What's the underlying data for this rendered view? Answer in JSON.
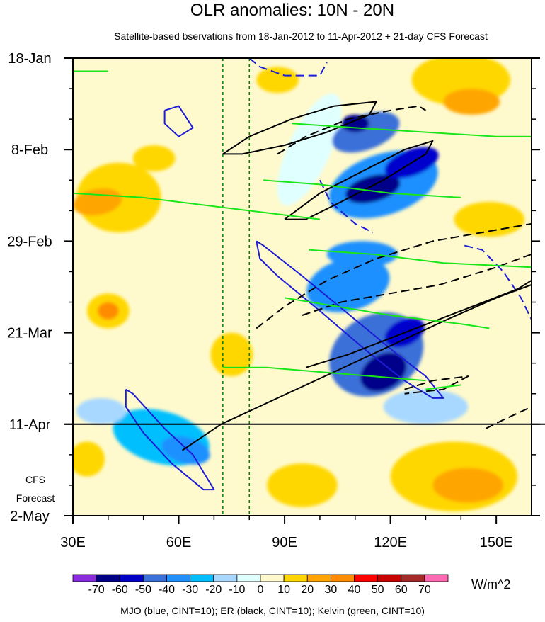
{
  "chart_data": {
    "type": "heatmap",
    "title": "OLR anomalies: 10N - 20N",
    "subtitle": "Satellite-based bservations from 18-Jan-2012 to 11-Apr-2012 + 21-day CFS Forecast",
    "x_ticks": [
      {
        "value": 30,
        "label": "30E"
      },
      {
        "value": 60,
        "label": "60E"
      },
      {
        "value": 90,
        "label": "90E"
      },
      {
        "value": 120,
        "label": "120E"
      },
      {
        "value": 150,
        "label": "150E"
      }
    ],
    "xlim": [
      30,
      160
    ],
    "ylim_days": [
      0,
      105
    ],
    "y_ticks": [
      {
        "day": 0,
        "label": "18-Jan"
      },
      {
        "day": 21,
        "label": "8-Feb"
      },
      {
        "day": 42,
        "label": "29-Feb"
      },
      {
        "day": 63,
        "label": "21-Mar"
      },
      {
        "day": 84,
        "label": "11-Apr"
      },
      {
        "day": 105,
        "label": "2-May"
      }
    ],
    "forecast_start_day": 84,
    "forecast_label_lines": [
      "CFS",
      "Forecast"
    ],
    "reference_lines_lon": [
      72.5,
      80
    ],
    "colorbar": {
      "unit": "W/m^2",
      "levels": [
        -70,
        -60,
        -50,
        -40,
        -30,
        -20,
        -10,
        0,
        10,
        20,
        30,
        40,
        50,
        60,
        70
      ],
      "colors": [
        "#8a2be2",
        "#00008b",
        "#0000cd",
        "#3a6fd8",
        "#1e90ff",
        "#00bfff",
        "#a8d8ff",
        "#e0ffff",
        "#fffacd",
        "#ffd700",
        "#ffa500",
        "#ff8c00",
        "#ff0000",
        "#cd0000",
        "#a52a2a",
        "#ff69b4"
      ]
    },
    "anomaly_patches": [
      {
        "lon": 97,
        "day": 21,
        "rl": 6,
        "rd": 14,
        "rot": 25,
        "value": -5
      },
      {
        "lon": 113,
        "day": 17,
        "rl": 10,
        "rd": 4,
        "rot": -20,
        "value": -50
      },
      {
        "lon": 110,
        "day": 15,
        "rl": 4,
        "rd": 2,
        "rot": 0,
        "value": -70
      },
      {
        "lon": 118,
        "day": 29,
        "rl": 16,
        "rd": 7,
        "rot": -18,
        "value": -40
      },
      {
        "lon": 115,
        "day": 30,
        "rl": 8,
        "rd": 3,
        "rot": -15,
        "value": -65
      },
      {
        "lon": 126,
        "day": 24,
        "rl": 8,
        "rd": 3,
        "rot": -20,
        "value": -55
      },
      {
        "lon": 108,
        "day": 52,
        "rl": 12,
        "rd": 6,
        "rot": -15,
        "value": -35
      },
      {
        "lon": 112,
        "day": 45,
        "rl": 10,
        "rd": 3,
        "rot": 0,
        "value": -40
      },
      {
        "lon": 116,
        "day": 68,
        "rl": 14,
        "rd": 9,
        "rot": -30,
        "value": -45
      },
      {
        "lon": 118,
        "day": 72,
        "rl": 7,
        "rd": 4,
        "rot": -30,
        "value": -65
      },
      {
        "lon": 124,
        "day": 63,
        "rl": 6,
        "rd": 3,
        "rot": -25,
        "value": -55
      },
      {
        "lon": 55,
        "day": 87,
        "rl": 14,
        "rd": 6,
        "rot": 15,
        "value": -25
      },
      {
        "lon": 62,
        "day": 90,
        "rl": 7,
        "rd": 3,
        "rot": 15,
        "value": -40
      },
      {
        "lon": 38,
        "day": 81,
        "rl": 7,
        "rd": 3,
        "rot": 0,
        "value": -20
      },
      {
        "lon": 130,
        "day": 80,
        "rl": 12,
        "rd": 4,
        "rot": 0,
        "value": -15
      },
      {
        "lon": 43,
        "day": 32,
        "rl": 12,
        "rd": 8,
        "rot": 0,
        "value": 10
      },
      {
        "lon": 37,
        "day": 33,
        "rl": 7,
        "rd": 3,
        "rot": -10,
        "value": 20
      },
      {
        "lon": 40,
        "day": 58,
        "rl": 6,
        "rd": 4,
        "rot": 0,
        "value": 15
      },
      {
        "lon": 40,
        "day": 58,
        "rl": 3,
        "rd": 2,
        "rot": 0,
        "value": 35
      },
      {
        "lon": 53,
        "day": 23,
        "rl": 6,
        "rd": 3,
        "rot": 0,
        "value": 15
      },
      {
        "lon": 140,
        "day": 5,
        "rl": 14,
        "rd": 6,
        "rot": 0,
        "value": 15
      },
      {
        "lon": 143,
        "day": 10,
        "rl": 8,
        "rd": 3,
        "rot": 0,
        "value": 25
      },
      {
        "lon": 148,
        "day": 37,
        "rl": 10,
        "rd": 4,
        "rot": 0,
        "value": 15
      },
      {
        "lon": 138,
        "day": 96,
        "rl": 18,
        "rd": 8,
        "rot": 0,
        "value": 15
      },
      {
        "lon": 142,
        "day": 98,
        "rl": 10,
        "rd": 4,
        "rot": 0,
        "value": 25
      },
      {
        "lon": 95,
        "day": 98,
        "rl": 10,
        "rd": 5,
        "rot": 0,
        "value": 15
      },
      {
        "lon": 75,
        "day": 68,
        "rl": 6,
        "rd": 5,
        "rot": 0,
        "value": 15
      },
      {
        "lon": 88,
        "day": 5,
        "rl": 6,
        "rd": 3,
        "rot": 0,
        "value": 15
      },
      {
        "lon": 34,
        "day": 92,
        "rl": 5,
        "rd": 4,
        "rot": 0,
        "value": 15
      }
    ],
    "contours": [
      {
        "index": "MJO",
        "sign": "positive",
        "points": [
          [
            56,
            12
          ],
          [
            60,
            11
          ],
          [
            64,
            16
          ],
          [
            60,
            18
          ],
          [
            56,
            15
          ],
          [
            56,
            12
          ]
        ]
      },
      {
        "index": "MJO",
        "sign": "positive",
        "points": [
          [
            82,
            42
          ],
          [
            84,
            43
          ],
          [
            95,
            50
          ],
          [
            110,
            60
          ],
          [
            122,
            68
          ],
          [
            130,
            73
          ],
          [
            135,
            78
          ],
          [
            132,
            78
          ],
          [
            124,
            74
          ],
          [
            113,
            67
          ],
          [
            100,
            58
          ],
          [
            88,
            50
          ],
          [
            83,
            46
          ],
          [
            82,
            42
          ]
        ]
      },
      {
        "index": "MJO",
        "sign": "positive",
        "points": [
          [
            45,
            76
          ],
          [
            47,
            77
          ],
          [
            56,
            85
          ],
          [
            64,
            91
          ],
          [
            70,
            99
          ],
          [
            67,
            99
          ],
          [
            58,
            93
          ],
          [
            50,
            86
          ],
          [
            45,
            80
          ],
          [
            45,
            76
          ]
        ]
      },
      {
        "index": "MJO",
        "sign": "negative",
        "points": [
          [
            80,
            0
          ],
          [
            83,
            2
          ],
          [
            90,
            4
          ],
          [
            100,
            4
          ],
          [
            102,
            1
          ]
        ]
      },
      {
        "index": "MJO",
        "sign": "negative",
        "points": [
          [
            100,
            28
          ],
          [
            103,
            33
          ],
          [
            110,
            38
          ],
          [
            115,
            40
          ]
        ]
      },
      {
        "index": "MJO",
        "sign": "negative",
        "points": [
          [
            141,
            43
          ],
          [
            146,
            44
          ],
          [
            152,
            49
          ],
          [
            157,
            55
          ],
          [
            160,
            60
          ]
        ]
      },
      {
        "index": "ER",
        "sign": "positive",
        "points": [
          [
            72.5,
            22
          ],
          [
            80,
            18
          ],
          [
            92,
            14
          ],
          [
            104,
            11
          ],
          [
            116,
            10
          ],
          [
            114,
            13
          ],
          [
            102,
            17
          ],
          [
            90,
            20
          ],
          [
            78,
            22
          ],
          [
            72.5,
            22
          ]
        ]
      },
      {
        "index": "ER",
        "sign": "positive",
        "points": [
          [
            90,
            37
          ],
          [
            100,
            31
          ],
          [
            112,
            26
          ],
          [
            124,
            21
          ],
          [
            132,
            19
          ],
          [
            130,
            22
          ],
          [
            118,
            28
          ],
          [
            106,
            33
          ],
          [
            96,
            37
          ],
          [
            90,
            37
          ]
        ]
      },
      {
        "index": "ER",
        "sign": "positive",
        "points": [
          [
            61,
            90
          ],
          [
            72,
            84
          ],
          [
            88,
            78
          ],
          [
            104,
            72
          ],
          [
            120,
            66
          ],
          [
            136,
            60
          ],
          [
            150,
            55
          ],
          [
            160,
            52
          ]
        ]
      },
      {
        "index": "ER",
        "sign": "positive",
        "points": [
          [
            96,
            71
          ],
          [
            108,
            68
          ],
          [
            124,
            63
          ],
          [
            140,
            58
          ],
          [
            156,
            53
          ],
          [
            160,
            51
          ]
        ]
      },
      {
        "index": "ER",
        "sign": "negative",
        "points": [
          [
            88,
            22
          ],
          [
            96,
            18
          ],
          [
            108,
            14
          ],
          [
            120,
            12
          ],
          [
            128,
            11
          ],
          [
            130,
            12
          ]
        ]
      },
      {
        "index": "ER",
        "sign": "negative",
        "points": [
          [
            82,
            62
          ],
          [
            90,
            57
          ],
          [
            102,
            51
          ],
          [
            116,
            46
          ],
          [
            132,
            42
          ],
          [
            146,
            40
          ],
          [
            160,
            38
          ]
        ]
      },
      {
        "index": "ER",
        "sign": "negative",
        "points": [
          [
            95,
            59
          ],
          [
            106,
            56
          ],
          [
            120,
            54
          ],
          [
            134,
            52
          ],
          [
            150,
            48
          ],
          [
            160,
            45
          ]
        ]
      },
      {
        "index": "ER",
        "sign": "negative",
        "points": [
          [
            124,
            76
          ],
          [
            132,
            74
          ],
          [
            142,
            73
          ],
          [
            135,
            76
          ],
          [
            124,
            77
          ]
        ]
      },
      {
        "index": "ER",
        "sign": "negative",
        "points": [
          [
            147,
            85
          ],
          [
            152,
            83
          ],
          [
            160,
            80
          ]
        ]
      },
      {
        "index": "Kelvin",
        "sign": "positive",
        "points": [
          [
            30,
            3
          ],
          [
            40,
            3
          ]
        ]
      },
      {
        "index": "Kelvin",
        "sign": "positive",
        "points": [
          [
            92,
            15
          ],
          [
            110,
            16
          ],
          [
            130,
            17
          ],
          [
            150,
            18
          ],
          [
            160,
            18
          ]
        ]
      },
      {
        "index": "Kelvin",
        "sign": "positive",
        "points": [
          [
            30,
            31
          ],
          [
            50,
            32
          ],
          [
            70,
            34
          ],
          [
            90,
            36
          ],
          [
            100,
            37
          ]
        ]
      },
      {
        "index": "Kelvin",
        "sign": "positive",
        "points": [
          [
            84,
            28
          ],
          [
            100,
            29
          ],
          [
            120,
            31
          ],
          [
            140,
            32
          ]
        ]
      },
      {
        "index": "Kelvin",
        "sign": "positive",
        "points": [
          [
            97,
            44
          ],
          [
            115,
            45
          ],
          [
            135,
            47
          ],
          [
            160,
            48
          ]
        ]
      },
      {
        "index": "Kelvin",
        "sign": "positive",
        "points": [
          [
            90,
            55
          ],
          [
            105,
            57
          ],
          [
            120,
            59
          ],
          [
            140,
            61
          ],
          [
            148,
            62
          ]
        ]
      },
      {
        "index": "Kelvin",
        "sign": "positive",
        "points": [
          [
            72.5,
            71
          ],
          [
            85,
            71
          ],
          [
            100,
            72
          ],
          [
            115,
            73
          ],
          [
            130,
            74
          ]
        ]
      },
      {
        "index": "Kelvin",
        "sign": "positive",
        "points": [
          [
            130,
            76
          ],
          [
            140,
            75
          ]
        ]
      }
    ],
    "contour_colors": {
      "MJO": "#1c1cd6",
      "ER": "#000000",
      "Kelvin": "#19e619"
    },
    "footer": "MJO (blue, CINT=10); ER (black, CINT=10); Kelvin (green, CINT=10)"
  }
}
